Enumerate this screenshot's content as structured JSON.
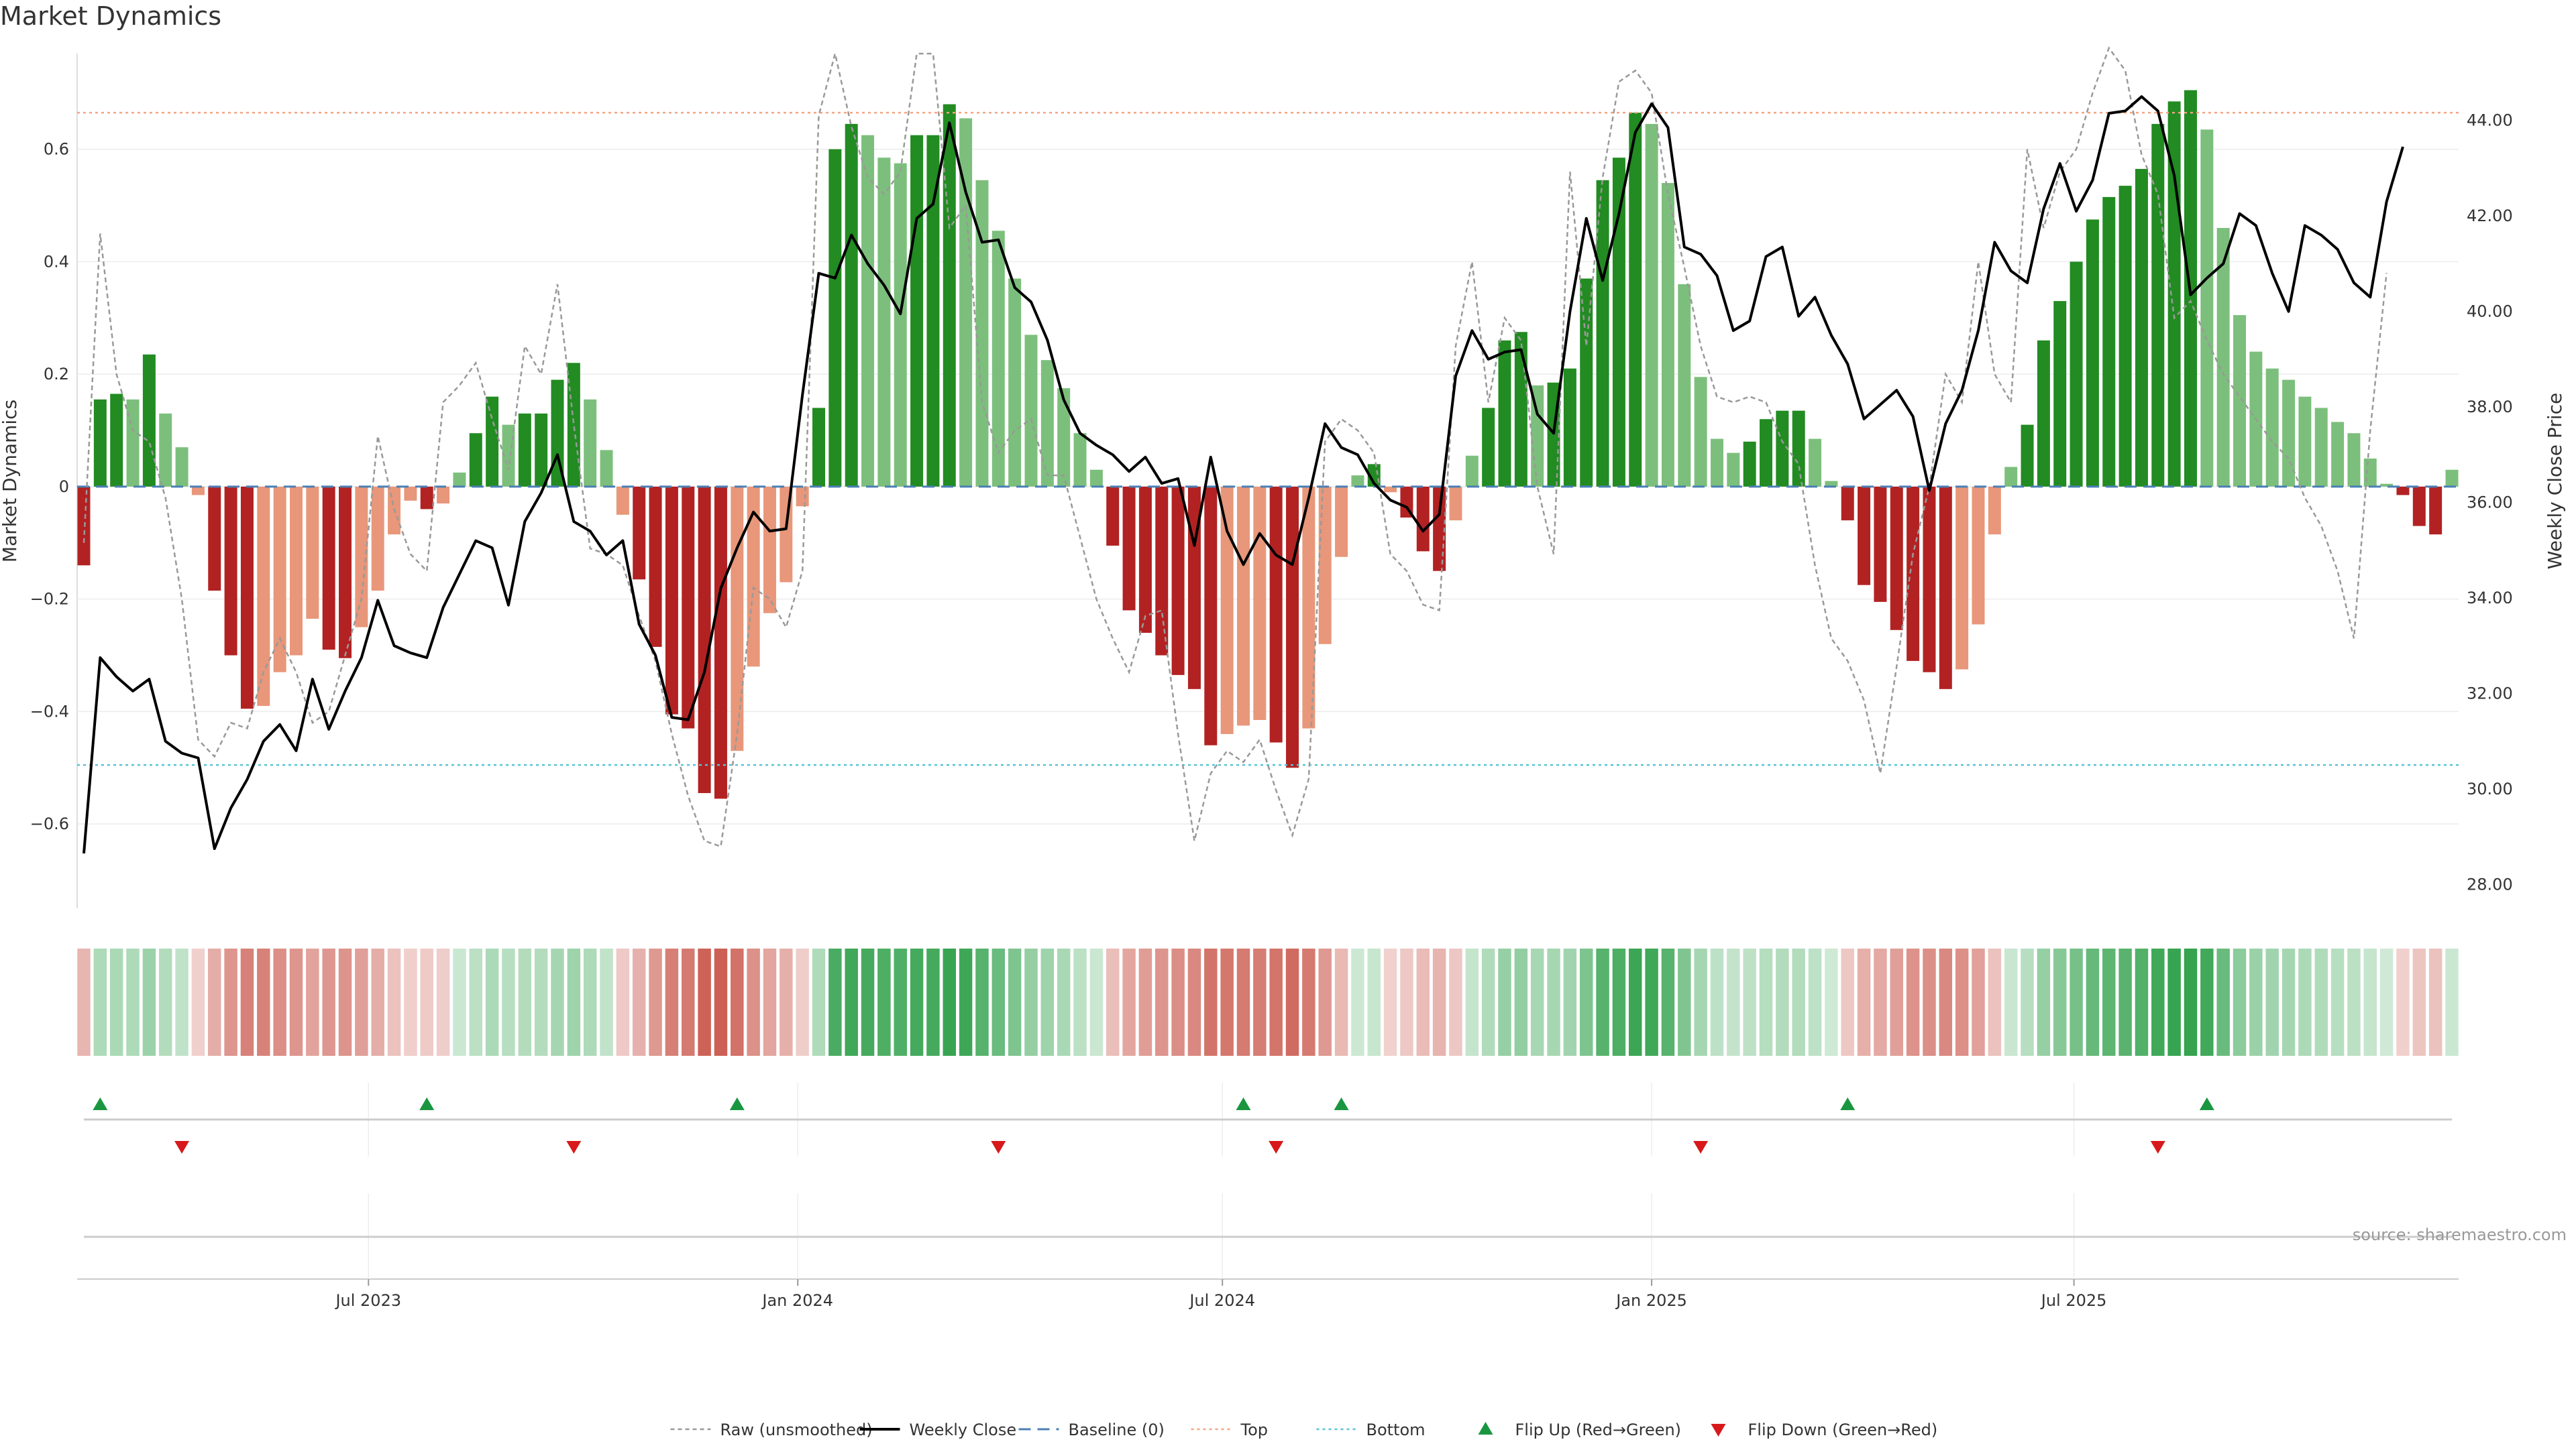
{
  "chart_data": {
    "type": "bar",
    "title": "Market Dynamics",
    "source_note": "source: sharemaestro.com",
    "ylabel_left": "Market Dynamics",
    "ylabel_right": "Weekly Close Price",
    "ylim_left": [
      -0.75,
      0.77
    ],
    "ylim_right": [
      27.5,
      45.4
    ],
    "y_ticks_left": [
      -0.6,
      -0.4,
      -0.2,
      0,
      0.2,
      0.4,
      0.6
    ],
    "y_tick_labels_left": [
      "−0.6",
      "−0.4",
      "−0.2",
      "0",
      "0.2",
      "0.4",
      "0.6"
    ],
    "y_ticks_right": [
      28,
      30,
      32,
      34,
      36,
      38,
      40,
      42,
      44
    ],
    "y_tick_labels_right": [
      "28.00",
      "30.00",
      "32.00",
      "34.00",
      "36.00",
      "38.00",
      "40.00",
      "42.00",
      "44.00"
    ],
    "x_start_date": "2023-03-01",
    "week_step_days": 7,
    "x_ticks": [
      {
        "date": "2023-07-01",
        "label": "Jul 2023"
      },
      {
        "date": "2024-01-01",
        "label": "Jan 2024"
      },
      {
        "date": "2024-07-01",
        "label": "Jul 2024"
      },
      {
        "date": "2025-01-01",
        "label": "Jan 2025"
      },
      {
        "date": "2025-07-01",
        "label": "Jul 2025"
      }
    ],
    "top_line": 0.665,
    "bottom_line": -0.495,
    "baseline": 0,
    "series": [
      {
        "name": "Market Dynamics (smoothed)",
        "kind": "bar",
        "values": [
          -0.14,
          0.155,
          0.165,
          0.155,
          0.235,
          0.13,
          0.07,
          -0.015,
          -0.185,
          -0.3,
          -0.395,
          -0.39,
          -0.33,
          -0.3,
          -0.235,
          -0.29,
          -0.305,
          -0.25,
          -0.185,
          -0.085,
          -0.025,
          -0.04,
          -0.03,
          0.025,
          0.095,
          0.16,
          0.11,
          0.13,
          0.13,
          0.19,
          0.22,
          0.155,
          0.065,
          -0.05,
          -0.165,
          -0.285,
          -0.405,
          -0.43,
          -0.545,
          -0.555,
          -0.47,
          -0.32,
          -0.225,
          -0.17,
          -0.035,
          0.14,
          0.6,
          0.645,
          0.625,
          0.585,
          0.575,
          0.625,
          0.625,
          0.68,
          0.655,
          0.545,
          0.455,
          0.37,
          0.27,
          0.225,
          0.175,
          0.095,
          0.03,
          -0.105,
          -0.22,
          -0.26,
          -0.3,
          -0.335,
          -0.36,
          -0.46,
          -0.44,
          -0.425,
          -0.415,
          -0.455,
          -0.5,
          -0.43,
          -0.28,
          -0.125,
          0.02,
          0.04,
          -0.01,
          -0.055,
          -0.115,
          -0.15,
          -0.06,
          0.055,
          0.14,
          0.26,
          0.275,
          0.18,
          0.185,
          0.21,
          0.37,
          0.545,
          0.585,
          0.665,
          0.645,
          0.54,
          0.36,
          0.195,
          0.085,
          0.06,
          0.08,
          0.12,
          0.135,
          0.135,
          0.085,
          0.01,
          -0.06,
          -0.175,
          -0.205,
          -0.255,
          -0.31,
          -0.33,
          -0.36,
          -0.325,
          -0.245,
          -0.085,
          0.035,
          0.11,
          0.26,
          0.33,
          0.4,
          0.475,
          0.515,
          0.535,
          0.565,
          0.645,
          0.685,
          0.705,
          0.635,
          0.46,
          0.305,
          0.24,
          0.21,
          0.19,
          0.16,
          0.14,
          0.115,
          0.095,
          0.05,
          0.005,
          -0.015,
          -0.07,
          -0.085,
          0.03
        ]
      },
      {
        "name": "Raw (unsmoothed)",
        "kind": "line",
        "values": [
          -0.1,
          0.45,
          0.2,
          0.1,
          0.08,
          -0.02,
          -0.2,
          -0.45,
          -0.48,
          -0.42,
          -0.43,
          -0.33,
          -0.27,
          -0.33,
          -0.42,
          -0.4,
          -0.3,
          -0.2,
          0.09,
          -0.04,
          -0.12,
          -0.15,
          0.15,
          0.18,
          0.22,
          0.12,
          0.03,
          0.25,
          0.2,
          0.36,
          0.11,
          -0.11,
          -0.12,
          -0.14,
          -0.23,
          -0.31,
          -0.44,
          -0.55,
          -0.63,
          -0.64,
          -0.44,
          -0.18,
          -0.2,
          -0.25,
          -0.15,
          0.66,
          0.77,
          0.64,
          0.55,
          0.52,
          0.56,
          0.77,
          0.77,
          0.46,
          0.5,
          0.15,
          0.06,
          0.1,
          0.12,
          0.02,
          0.02,
          -0.09,
          -0.2,
          -0.27,
          -0.33,
          -0.23,
          -0.22,
          -0.44,
          -0.63,
          -0.51,
          -0.47,
          -0.49,
          -0.45,
          -0.54,
          -0.62,
          -0.52,
          0.08,
          0.12,
          0.1,
          0.06,
          -0.12,
          -0.15,
          -0.21,
          -0.22,
          0.25,
          0.4,
          0.15,
          0.3,
          0.26,
          0.0,
          -0.12,
          0.56,
          0.25,
          0.55,
          0.72,
          0.74,
          0.7,
          0.52,
          0.39,
          0.25,
          0.16,
          0.15,
          0.16,
          0.15,
          0.08,
          0.04,
          -0.14,
          -0.27,
          -0.31,
          -0.38,
          -0.51,
          -0.32,
          -0.12,
          0.0,
          0.2,
          0.15,
          0.4,
          0.2,
          0.15,
          0.6,
          0.46,
          0.56,
          0.6,
          0.7,
          0.78,
          0.74,
          0.59,
          0.52,
          0.3,
          0.33,
          0.26,
          0.2,
          0.16,
          0.12,
          0.08,
          0.05,
          -0.02,
          -0.07,
          -0.15,
          -0.27,
          0.1,
          0.38
        ]
      },
      {
        "name": "Weekly Close",
        "kind": "line",
        "axis": "right",
        "values": [
          28.65,
          32.75,
          32.35,
          32.05,
          32.3,
          31.0,
          30.75,
          30.65,
          28.75,
          29.6,
          30.2,
          31.0,
          31.35,
          30.8,
          32.3,
          31.25,
          32.05,
          32.75,
          33.95,
          33.0,
          32.85,
          32.75,
          33.8,
          34.5,
          35.2,
          35.05,
          33.85,
          35.6,
          36.2,
          37.0,
          35.6,
          35.4,
          34.9,
          35.2,
          33.45,
          32.8,
          31.5,
          31.45,
          32.45,
          34.2,
          35.05,
          35.8,
          35.4,
          35.45,
          38.25,
          40.8,
          40.7,
          41.6,
          41.0,
          40.55,
          39.95,
          41.95,
          42.25,
          43.95,
          42.5,
          41.45,
          41.5,
          40.5,
          40.2,
          39.4,
          38.15,
          37.45,
          37.2,
          37.0,
          36.65,
          36.95,
          36.4,
          36.5,
          35.1,
          36.95,
          35.4,
          34.7,
          35.35,
          34.9,
          34.7,
          36.1,
          37.65,
          37.15,
          37.0,
          36.4,
          36.05,
          35.9,
          35.4,
          35.75,
          38.65,
          39.6,
          39.0,
          39.15,
          39.2,
          37.85,
          37.45,
          40.0,
          41.95,
          40.65,
          42.05,
          43.75,
          44.35,
          43.85,
          41.35,
          41.2,
          40.75,
          39.6,
          39.8,
          41.15,
          41.35,
          39.9,
          40.3,
          39.5,
          38.9,
          37.75,
          38.05,
          38.35,
          37.8,
          36.25,
          37.65,
          38.35,
          39.6,
          41.45,
          40.85,
          40.6,
          42.15,
          43.1,
          42.1,
          42.75,
          44.15,
          44.2,
          44.5,
          44.2,
          42.85,
          40.35,
          40.7,
          41.0,
          42.05,
          41.8,
          40.8,
          40.0,
          41.8,
          41.6,
          41.3,
          40.6,
          40.3,
          42.3,
          43.45
        ]
      }
    ],
    "flips_up": [
      1,
      21,
      40,
      71,
      77,
      108,
      130
    ],
    "flips_down": [
      6,
      30,
      56,
      73,
      99,
      127
    ],
    "colors": {
      "bar_up_strong": "#228b22",
      "bar_up_weak": "#7cbf7c",
      "bar_down_strong": "#b22222",
      "bar_down_weak": "#e8977a",
      "close_line": "#000000",
      "raw_line": "#999999",
      "baseline": "#4a7fb5",
      "top_line": "#f4a582",
      "bottom_line": "#56c4d6",
      "flip_up": "#1a9641",
      "flip_down": "#d7191c",
      "heat_green": "#2a9e46",
      "heat_red": "#c0392b"
    },
    "legend": {
      "position": "bottom-center",
      "entries": [
        {
          "label": "Raw (unsmoothed)",
          "style": "raw"
        },
        {
          "label": "Weekly Close",
          "style": "close"
        },
        {
          "label": "Baseline (0)",
          "style": "baseline"
        },
        {
          "label": "Top",
          "style": "top"
        },
        {
          "label": "Bottom",
          "style": "bottom"
        },
        {
          "label": "Flip Up (Red→Green)",
          "style": "flipup"
        },
        {
          "label": "Flip Down (Green→Red)",
          "style": "flipdown"
        }
      ]
    }
  }
}
